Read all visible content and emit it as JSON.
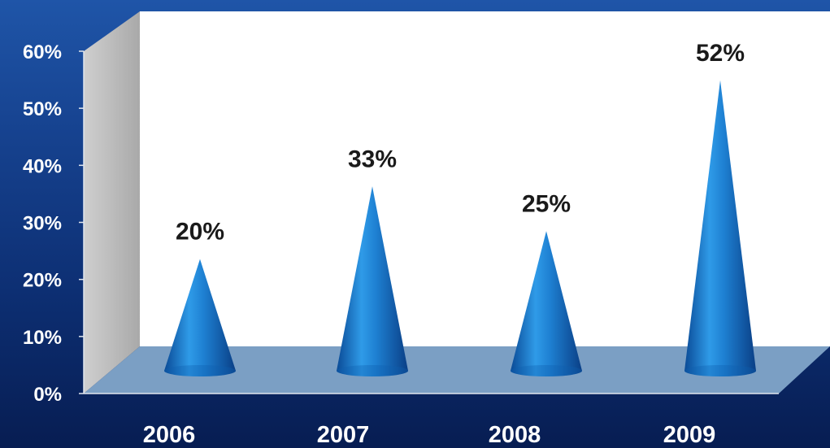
{
  "chart_data": {
    "type": "bar",
    "shape": "cone",
    "title": "",
    "xlabel": "",
    "ylabel": "",
    "categories": [
      "2006",
      "2007",
      "2008",
      "2009"
    ],
    "values": [
      20,
      33,
      25,
      52
    ],
    "data_labels": [
      "20%",
      "33%",
      "25%",
      "52%"
    ],
    "ytick_labels": [
      "0%",
      "10%",
      "20%",
      "30%",
      "40%",
      "50%",
      "60%"
    ],
    "ylim": [
      0,
      60
    ],
    "grid": false,
    "legend": "none",
    "colors": {
      "cone": "#1e7fd0",
      "plot_wall": "#ffffff",
      "side_wall": "#bdbdbd",
      "floor": "#7b9fc4",
      "axis_text": "#ffffff",
      "data_label_text": "#1a1a1a"
    }
  }
}
